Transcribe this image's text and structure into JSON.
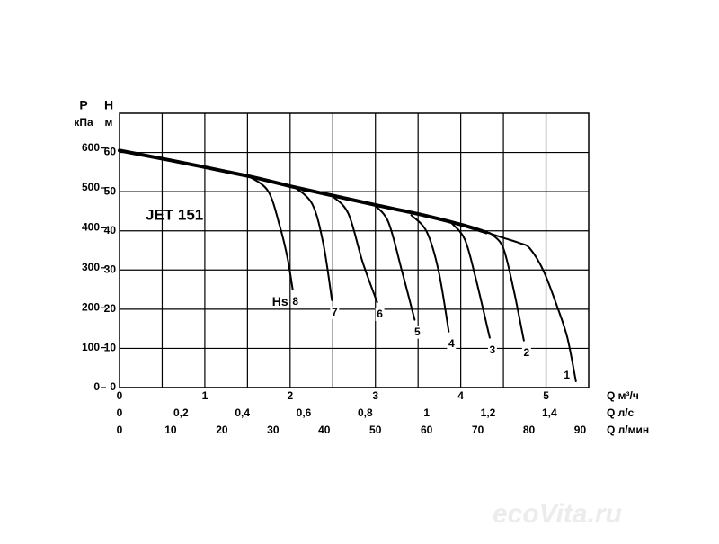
{
  "chart_data": {
    "type": "line",
    "title": "JET 151",
    "annotation": "Hs",
    "watermark": "ecoVita.ru",
    "y_label": "H",
    "y_unit": "м",
    "y2_label": "P",
    "y2_unit": "кПа",
    "x_label": "Q м³/ч",
    "xlim": [
      0,
      5.5
    ],
    "xticks": [
      0,
      1,
      2,
      3,
      4,
      5
    ],
    "xgrid": [
      0.5,
      1,
      1.5,
      2,
      2.5,
      3,
      3.5,
      4,
      4.5,
      5
    ],
    "ylim": [
      0,
      70
    ],
    "yticks": [
      0,
      10,
      20,
      30,
      40,
      50,
      60
    ],
    "y2lim": [
      0,
      687
    ],
    "y2ticks": [
      0,
      100,
      200,
      300,
      400,
      500,
      600
    ],
    "extra_x_axes": [
      {
        "label": "Q л/с",
        "xlim": [
          0,
          1.5278
        ],
        "xticks": [
          0,
          {
            "value": 0.2,
            "label": "0,2"
          },
          {
            "value": 0.4,
            "label": "0,4"
          },
          {
            "value": 0.6,
            "label": "0,6"
          },
          {
            "value": 0.8,
            "label": "0,8"
          },
          1,
          {
            "value": 1.2,
            "label": "1,2"
          },
          {
            "value": 1.4,
            "label": "1,4"
          }
        ]
      },
      {
        "label": "Q л/мин",
        "xlim": [
          0,
          91.67
        ],
        "xticks": [
          0,
          10,
          20,
          30,
          40,
          50,
          60,
          70,
          80,
          90
        ]
      }
    ],
    "grid": true,
    "color": "#000000",
    "series": [
      {
        "x": [
          0,
          0.6,
          1.5,
          2,
          2.5,
          3,
          3.5,
          4,
          4.3
        ],
        "values": [
          60.5,
          58,
          54,
          51.4,
          49,
          46.6,
          44.3,
          41.6,
          39.6
        ],
        "width": 4
      },
      {
        "name": "1",
        "x": [
          4.0,
          4.3,
          4.5,
          4.7,
          4.81,
          4.97,
          5.13,
          5.25,
          5.35
        ],
        "values": [
          41.6,
          39.6,
          38.2,
          36.8,
          35.5,
          29.8,
          20.7,
          12.7,
          1.6
        ],
        "width": 2
      },
      {
        "name": "2",
        "x": [
          4.3,
          4.37,
          4.5,
          4.62,
          4.74
        ],
        "values": [
          39.6,
          39.0,
          35.5,
          25,
          12
        ],
        "width": 2
      },
      {
        "name": "3",
        "x": [
          3.9,
          4.05,
          4.18,
          4.34
        ],
        "values": [
          41.8,
          37.7,
          27.5,
          12.7
        ],
        "width": 2
      },
      {
        "name": "4",
        "x": [
          3.42,
          3.6,
          3.74,
          3.86
        ],
        "values": [
          44,
          39.8,
          29.8,
          14.3
        ],
        "width": 2
      },
      {
        "name": "5",
        "x": [
          2.98,
          3.15,
          3.31,
          3.46
        ],
        "values": [
          46.7,
          42.3,
          29.8,
          17.3
        ],
        "width": 2
      },
      {
        "name": "6",
        "x": [
          2.48,
          2.68,
          2.85,
          3.02
        ],
        "values": [
          49.1,
          44.5,
          32,
          21.8
        ],
        "width": 2
      },
      {
        "name": "7",
        "x": [
          2.05,
          2.26,
          2.39,
          2.49
        ],
        "values": [
          51.2,
          46.8,
          36.6,
          22.3
        ],
        "width": 2
      },
      {
        "name": "8",
        "x": [
          1.5,
          1.74,
          1.88,
          1.97,
          2.03
        ],
        "values": [
          54.1,
          50.2,
          41.1,
          33,
          25
        ],
        "width": 2
      }
    ]
  }
}
